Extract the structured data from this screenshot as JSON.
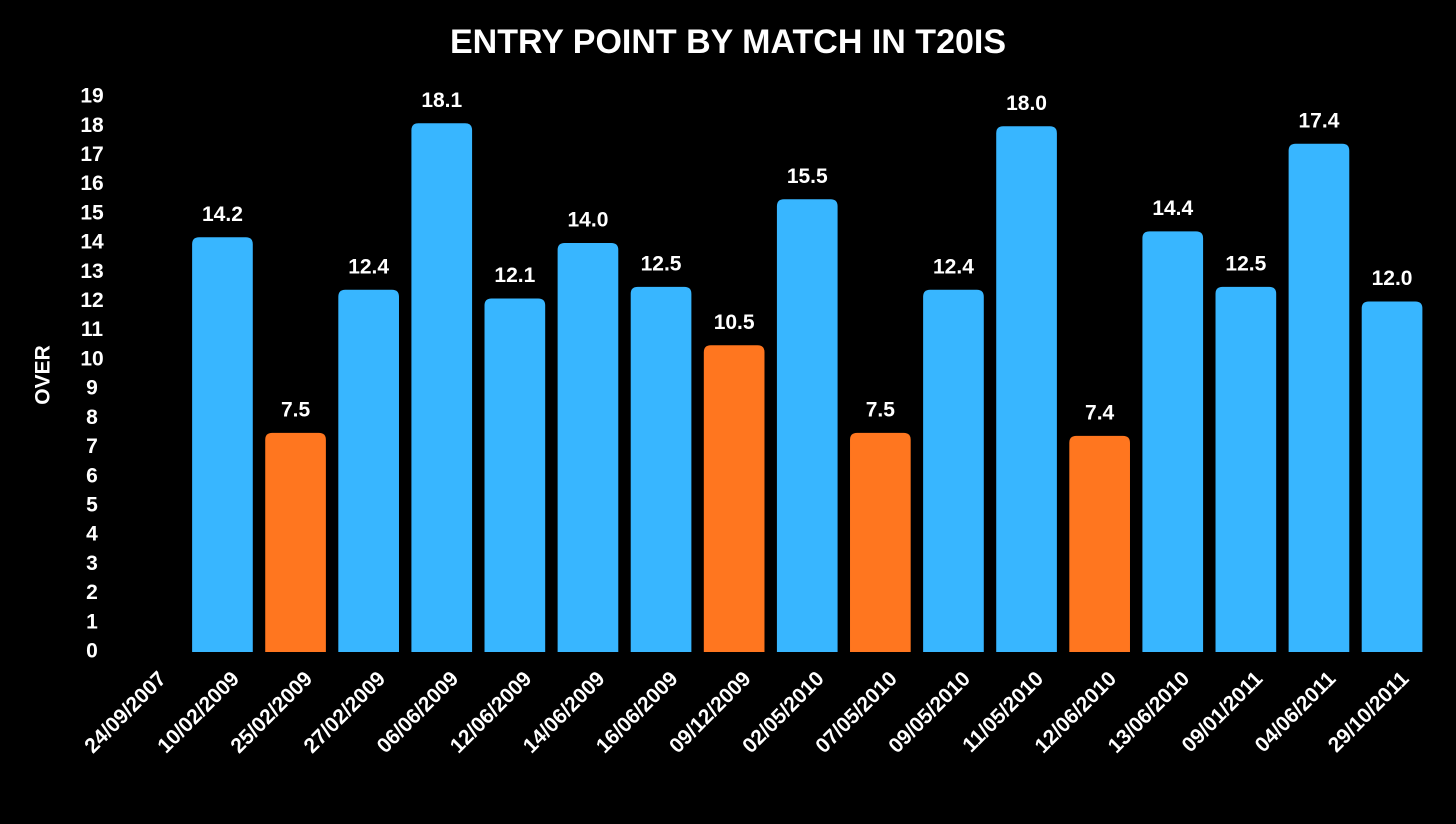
{
  "chart_data": {
    "type": "bar",
    "title": "ENTRY POINT BY MATCH IN T20IS",
    "y_label": "OVER",
    "categories": [
      "24/09/2007",
      "10/02/2009",
      "25/02/2009",
      "27/02/2009",
      "06/06/2009",
      "12/06/2009",
      "14/06/2009",
      "16/06/2009",
      "09/12/2009",
      "02/05/2010",
      "07/05/2010",
      "09/05/2010",
      "11/05/2010",
      "12/06/2010",
      "13/06/2010",
      "09/01/2011",
      "04/06/2011",
      "29/10/2011"
    ],
    "values": [
      null,
      14.2,
      7.5,
      12.4,
      18.1,
      12.1,
      14.0,
      12.5,
      10.5,
      15.5,
      7.5,
      12.4,
      18.0,
      7.4,
      14.4,
      12.5,
      17.4,
      12.0
    ],
    "value_labels": [
      null,
      "14.2",
      "7.5",
      "12.4",
      "18.1",
      "12.1",
      "14.0",
      "12.5",
      "10.5",
      "15.5",
      "7.5",
      "12.4",
      "18.0",
      "7.4",
      "14.4",
      "12.5",
      "17.4",
      "12.0"
    ],
    "colors": [
      null,
      "#38b6ff",
      "#ff761f",
      "#38b6ff",
      "#38b6ff",
      "#38b6ff",
      "#38b6ff",
      "#38b6ff",
      "#ff761f",
      "#38b6ff",
      "#ff761f",
      "#38b6ff",
      "#38b6ff",
      "#ff761f",
      "#38b6ff",
      "#38b6ff",
      "#38b6ff",
      "#38b6ff"
    ],
    "ylim": [
      0,
      19
    ],
    "yticks": [
      0,
      1,
      2,
      3,
      4,
      5,
      6,
      7,
      8,
      9,
      10,
      11,
      12,
      13,
      14,
      15,
      16,
      17,
      18,
      19
    ],
    "grid": false
  }
}
